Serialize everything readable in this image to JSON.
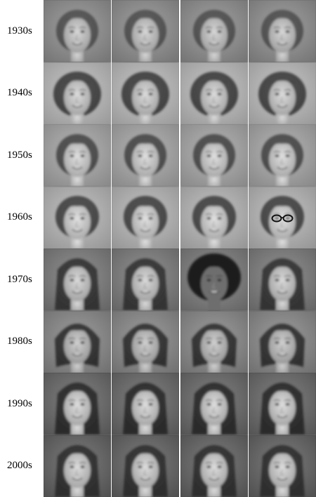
{
  "figure": {
    "rows": [
      {
        "label": "1930s",
        "hair": "short-wave",
        "bg": "#8f8f8f",
        "hair_tone": "#4a4a4a",
        "skin": "#bdbdbd",
        "faces": [
          "face-portrait",
          "face-portrait",
          "face-portrait",
          "face-portrait"
        ]
      },
      {
        "label": "1940s",
        "hair": "voluminous-curl",
        "bg": "#b4b4b4",
        "hair_tone": "#3b3b3b",
        "skin": "#c2c2c2",
        "faces": [
          "face-portrait",
          "face-portrait",
          "face-portrait",
          "face-portrait"
        ]
      },
      {
        "label": "1950s",
        "hair": "short-curl",
        "bg": "#a3a3a3",
        "hair_tone": "#444444",
        "skin": "#c6c6c6",
        "faces": [
          "face-portrait",
          "face-portrait",
          "face-portrait",
          "face-portrait"
        ]
      },
      {
        "label": "1960s",
        "hair": "bouffant",
        "bg": "#b0b0b0",
        "hair_tone": "#3f3f3f",
        "skin": "#c8c8c8",
        "faces": [
          "face-portrait",
          "face-portrait",
          "face-portrait",
          "face-with-glasses"
        ]
      },
      {
        "label": "1970s",
        "hair": "long-straight",
        "bg": "#7f7f7f",
        "hair_tone": "#2f2f2f",
        "skin": "#c0c0c0",
        "faces": [
          "face-portrait",
          "face-portrait",
          "face-afro",
          "face-portrait"
        ]
      },
      {
        "label": "1980s",
        "hair": "feathered",
        "bg": "#8a8a8a",
        "hair_tone": "#2c2c2c",
        "skin": "#b6b6b6",
        "faces": [
          "face-portrait",
          "face-portrait",
          "face-portrait",
          "face-portrait"
        ]
      },
      {
        "label": "1990s",
        "hair": "long-dark",
        "bg": "#6f6f6f",
        "hair_tone": "#262626",
        "skin": "#c4c4c4",
        "faces": [
          "face-portrait",
          "face-portrait",
          "face-portrait",
          "face-portrait"
        ]
      },
      {
        "label": "2000s",
        "hair": "long-straight",
        "bg": "#6a6a6a",
        "hair_tone": "#2a2a2a",
        "skin": "#c3c3c3",
        "faces": [
          "face-portrait",
          "face-portrait",
          "face-portrait",
          "face-portrait"
        ]
      }
    ]
  }
}
